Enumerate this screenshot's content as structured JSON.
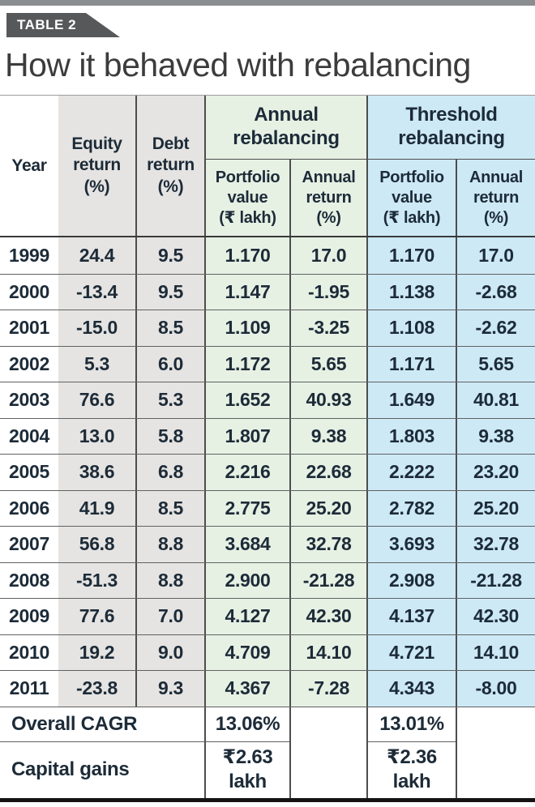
{
  "accent_colors": {
    "top_strip": "#8b8e90",
    "badge_bg": "#57585a",
    "gray_column": "#e5e4e2",
    "annual_rebalancing_green": "#e6f1e4",
    "threshold_rebalancing_blue": "#cde9f6",
    "text": "#1d2b38"
  },
  "chart_data": {
    "type": "table",
    "tag": "TABLE 2",
    "title": "How it behaved with rebalancing",
    "column_groups": [
      "Annual rebalancing",
      "Threshold rebalancing"
    ],
    "columns": [
      "Year",
      "Equity return (%)",
      "Debt return (%)",
      "Portfolio value (₹ lakh)",
      "Annual return (%)",
      "Portfolio value (₹ lakh)",
      "Annual return (%)"
    ],
    "rows": [
      [
        "1999",
        "24.4",
        "9.5",
        "1.170",
        "17.0",
        "1.170",
        "17.0"
      ],
      [
        "2000",
        "-13.4",
        "9.5",
        "1.147",
        "-1.95",
        "1.138",
        "-2.68"
      ],
      [
        "2001",
        "-15.0",
        "8.5",
        "1.109",
        "-3.25",
        "1.108",
        "-2.62"
      ],
      [
        "2002",
        "5.3",
        "6.0",
        "1.172",
        "5.65",
        "1.171",
        "5.65"
      ],
      [
        "2003",
        "76.6",
        "5.3",
        "1.652",
        "40.93",
        "1.649",
        "40.81"
      ],
      [
        "2004",
        "13.0",
        "5.8",
        "1.807",
        "9.38",
        "1.803",
        "9.38"
      ],
      [
        "2005",
        "38.6",
        "6.8",
        "2.216",
        "22.68",
        "2.222",
        "23.20"
      ],
      [
        "2006",
        "41.9",
        "8.5",
        "2.775",
        "25.20",
        "2.782",
        "25.20"
      ],
      [
        "2007",
        "56.8",
        "8.8",
        "3.684",
        "32.78",
        "3.693",
        "32.78"
      ],
      [
        "2008",
        "-51.3",
        "8.8",
        "2.900",
        "-21.28",
        "2.908",
        "-21.28"
      ],
      [
        "2009",
        "77.6",
        "7.0",
        "4.127",
        "42.30",
        "4.137",
        "42.30"
      ],
      [
        "2010",
        "19.2",
        "9.0",
        "4.709",
        "14.10",
        "4.721",
        "14.10"
      ],
      [
        "2011",
        "-23.8",
        "9.3",
        "4.367",
        "-7.28",
        "4.343",
        "-8.00"
      ]
    ],
    "summary": {
      "overall_cagr": {
        "label": "Overall CAGR",
        "annual": "13.06%",
        "threshold": "13.01%"
      },
      "capital_gains": {
        "label": "Capital gains",
        "annual": "₹2.63 lakh",
        "threshold": "₹2.36 lakh"
      }
    }
  },
  "display": {
    "headers": {
      "year": "Year",
      "equity": "Equity\nreturn\n(%)",
      "debt": "Debt\nreturn\n(%)",
      "annual_group": "Annual\nrebalancing",
      "threshold_group": "Threshold\nrebalancing",
      "portfolio": "Portfolio\nvalue\n(₹ lakh)",
      "annual_return": "Annual\nreturn\n(%)"
    },
    "capital_gains_annual": "₹2.63\nlakh",
    "capital_gains_threshold": "₹2.36\nlakh"
  }
}
